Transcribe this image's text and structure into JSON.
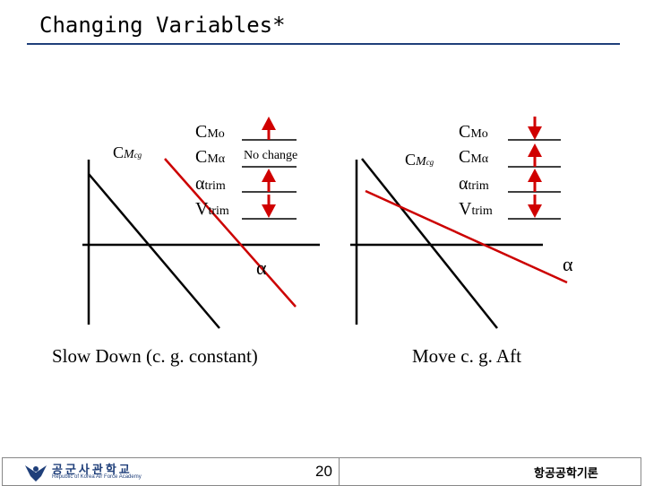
{
  "title": "Changing Variables*",
  "left_panel": {
    "y_axis_label": "C",
    "y_axis_label_sub": "M",
    "y_axis_label_subsub": "cg",
    "x_axis_label": "α",
    "caption": "Slow Down (c. g. constant)",
    "variables": [
      {
        "name": "C",
        "sub": "Mo",
        "change": "up"
      },
      {
        "name": "C",
        "sub": "Mα",
        "change": "none",
        "note": "No change"
      },
      {
        "name": "α",
        "sub": "trim",
        "change": "up"
      },
      {
        "name": "V",
        "sub": "trim",
        "change": "down"
      }
    ]
  },
  "right_panel": {
    "y_axis_label": "C",
    "y_axis_label_sub": "M",
    "y_axis_label_subsub": "cg",
    "x_axis_label": "α",
    "caption": "Move c. g. Aft",
    "variables": [
      {
        "name": "C",
        "sub": "Mo",
        "change": "down"
      },
      {
        "name": "C",
        "sub": "Mα",
        "change": "up"
      },
      {
        "name": "α",
        "sub": "trim",
        "change": "up"
      },
      {
        "name": "V",
        "sub": "trim",
        "change": "down"
      }
    ]
  },
  "colors": {
    "title_rule": "#1f3f7a",
    "arrow": "#d00000",
    "new_line": "#cc0000",
    "axis": "#000000"
  },
  "footer": {
    "logo_text": "공군사관학교",
    "logo_subtext": "Republic of Korea Air Force Academy",
    "page_number": "20",
    "course_name": "항공공학기론"
  }
}
